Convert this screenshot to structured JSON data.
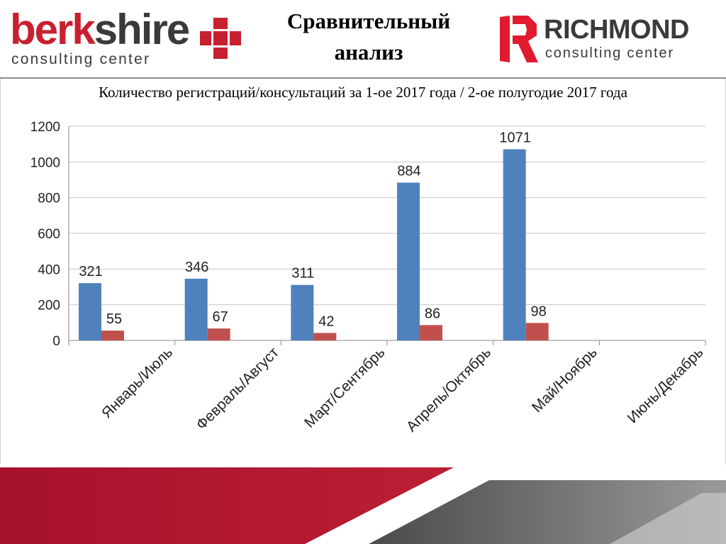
{
  "header": {
    "left_brand": {
      "word1": "berk",
      "word2": "shire",
      "subtitle": "consulting center"
    },
    "right_brand": {
      "name": "RICHMOND",
      "subtitle": "consulting center"
    },
    "title": "Сравнительный\nанализ"
  },
  "chart_data": {
    "type": "bar",
    "title": "Количество регистраций/консультаций за 1-ое 2017 года / 2-ое полугодие 2017 года",
    "categories": [
      "Январь/Июль",
      "Февраль/Август",
      "Март/Сентябрь",
      "Апрель/Октябрь",
      "Май/Ноябрь",
      "Июнь/Декабрь"
    ],
    "series": [
      {
        "values": [
          321,
          346,
          311,
          884,
          1071,
          null
        ],
        "color": "#4f81bd"
      },
      {
        "values": [
          55,
          67,
          42,
          86,
          98,
          null
        ],
        "color": "#c0504d"
      }
    ],
    "ylim": [
      0,
      1200
    ],
    "yticks": [
      0,
      200,
      400,
      600,
      800,
      1000,
      1200
    ],
    "grid": true,
    "legend": "none"
  },
  "colors": {
    "brand_red": "#c8202f",
    "text_dark": "#3a3a3a",
    "rule": "#8c8c8c"
  }
}
